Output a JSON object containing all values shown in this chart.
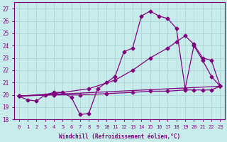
{
  "xlabel": "Windchill (Refroidissement éolien,°C)",
  "xlim": [
    -0.5,
    23.5
  ],
  "ylim": [
    18,
    27.5
  ],
  "yticks": [
    18,
    19,
    20,
    21,
    22,
    23,
    24,
    25,
    26,
    27
  ],
  "xticks": [
    0,
    1,
    2,
    3,
    4,
    5,
    6,
    7,
    8,
    9,
    10,
    11,
    12,
    13,
    14,
    15,
    16,
    17,
    18,
    19,
    20,
    21,
    22,
    23
  ],
  "background_color": "#c8ecec",
  "grid_color": "#b0d8d8",
  "line_color": "#800080",
  "lines": [
    {
      "x": [
        0,
        1,
        2,
        3,
        4,
        5,
        6,
        7,
        8,
        9,
        10,
        11,
        12,
        13,
        14,
        15,
        16,
        17,
        18,
        19,
        20,
        21,
        22,
        23
      ],
      "y": [
        19.9,
        19.6,
        19.5,
        20.0,
        20.2,
        20.2,
        19.8,
        18.4,
        18.5,
        20.5,
        21.0,
        21.5,
        23.5,
        23.8,
        26.4,
        26.8,
        26.4,
        26.2,
        25.4,
        20.5,
        24.0,
        22.8,
        21.5,
        20.7
      ]
    },
    {
      "x": [
        0,
        23
      ],
      "y": [
        19.9,
        20.7
      ]
    },
    {
      "x": [
        0,
        4,
        8,
        11,
        13,
        15,
        17,
        18,
        19,
        20,
        21,
        22,
        23
      ],
      "y": [
        19.9,
        20.1,
        20.5,
        21.2,
        22.0,
        23.0,
        23.8,
        24.3,
        24.8,
        24.1,
        23.0,
        22.8,
        20.7
      ]
    },
    {
      "x": [
        0,
        4,
        7,
        10,
        13,
        15,
        17,
        19,
        20,
        21,
        22,
        23
      ],
      "y": [
        19.9,
        20.0,
        20.0,
        20.1,
        20.2,
        20.3,
        20.3,
        20.4,
        20.4,
        20.4,
        20.4,
        20.7
      ]
    }
  ]
}
